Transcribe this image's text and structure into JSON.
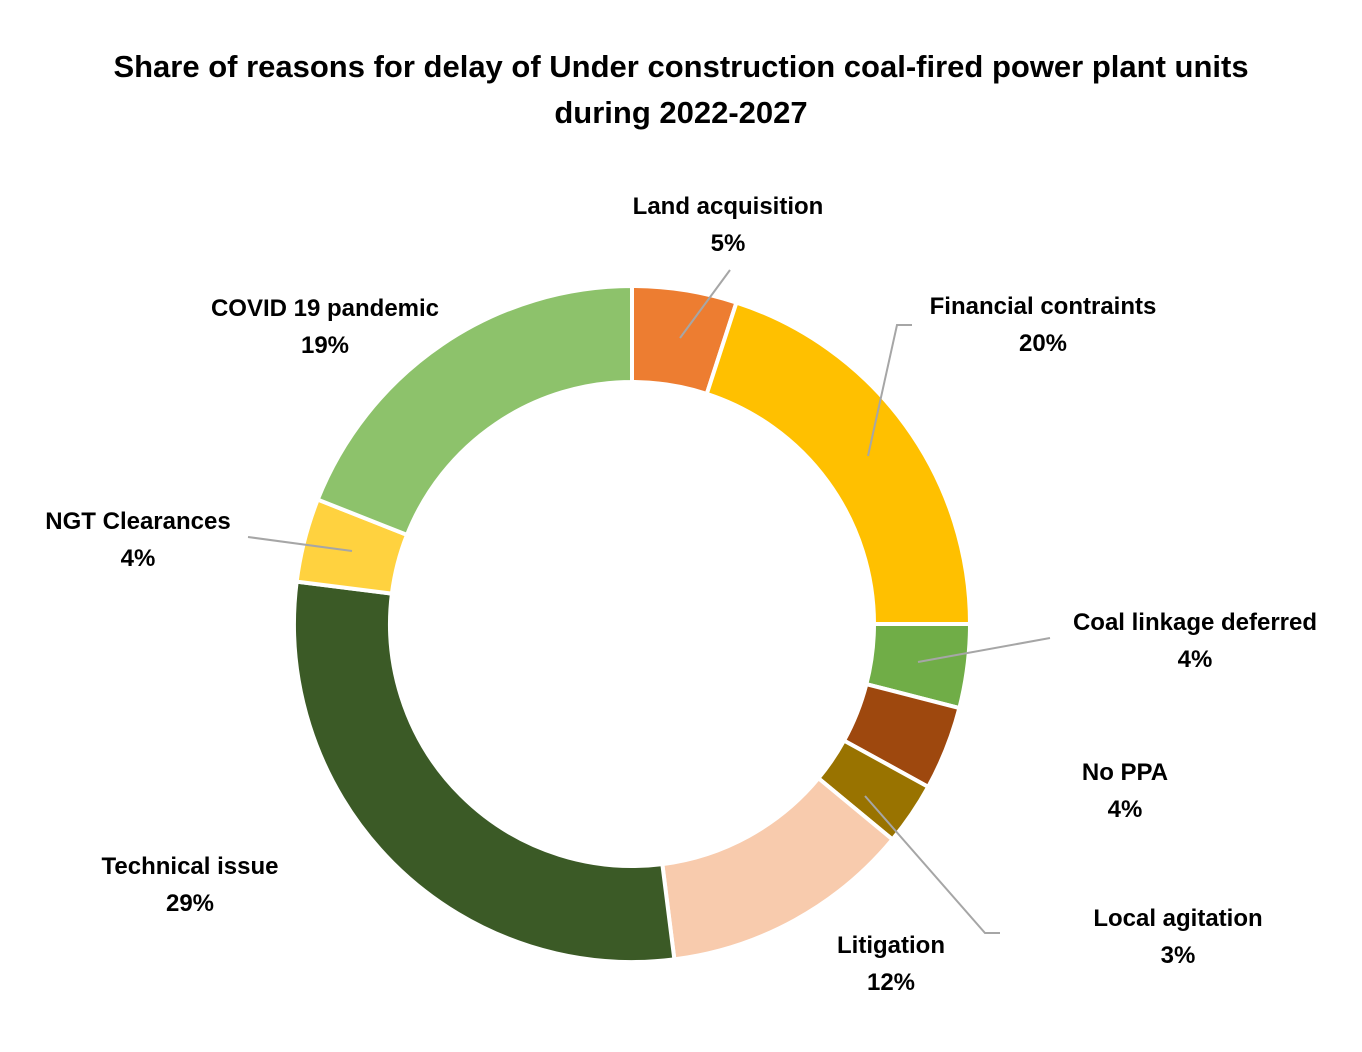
{
  "chart_data": {
    "type": "pie",
    "donut": true,
    "title_line1": "Share of reasons for delay of Under construction coal-fired power plant units",
    "title_line2": "during 2022-2027",
    "categories": [
      "Land acquisition",
      "Financial contraints",
      "Coal linkage deferred",
      "No PPA",
      "Local agitation",
      "Litigation",
      "Technical issue",
      "NGT Clearances",
      "COVID 19 pandemic"
    ],
    "values": [
      5,
      20,
      4,
      4,
      3,
      12,
      29,
      4,
      19
    ],
    "value_labels": [
      "5%",
      "20%",
      "4%",
      "4%",
      "3%",
      "12%",
      "29%",
      "4%",
      "19%"
    ],
    "colors": [
      "#ED7D31",
      "#FFC000",
      "#70AD47",
      "#9E480E",
      "#997300",
      "#F8CBAD",
      "#3B5A26",
      "#FFD23F",
      "#8DC26B"
    ],
    "legend": "none",
    "data_labels": "outside with leader lines"
  }
}
